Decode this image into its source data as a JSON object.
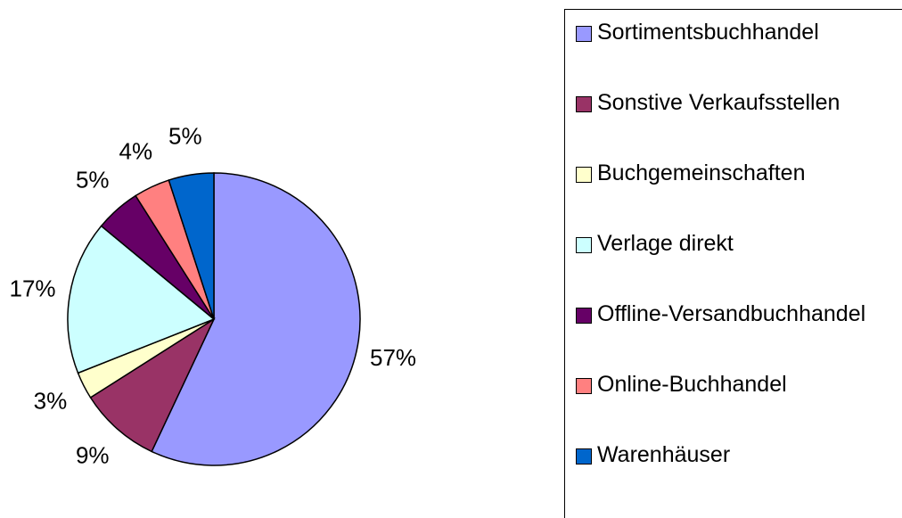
{
  "chart_data": {
    "type": "pie",
    "categories": [
      "Sortimentsbuchhandel",
      "Sonstive Verkaufsstellen",
      "Buchgemeinschaften",
      "Verlage direkt",
      "Offline-Versandbuchhandel",
      "Online-Buchhandel",
      "Warenhäuser"
    ],
    "values": [
      57,
      9,
      3,
      17,
      5,
      4,
      5
    ],
    "value_labels": [
      "57%",
      "9%",
      "3%",
      "17%",
      "5%",
      "4%",
      "5%"
    ],
    "colors": [
      "#9999ff",
      "#993366",
      "#ffffcc",
      "#ccffff",
      "#660066",
      "#ff8080",
      "#0066cc"
    ]
  }
}
